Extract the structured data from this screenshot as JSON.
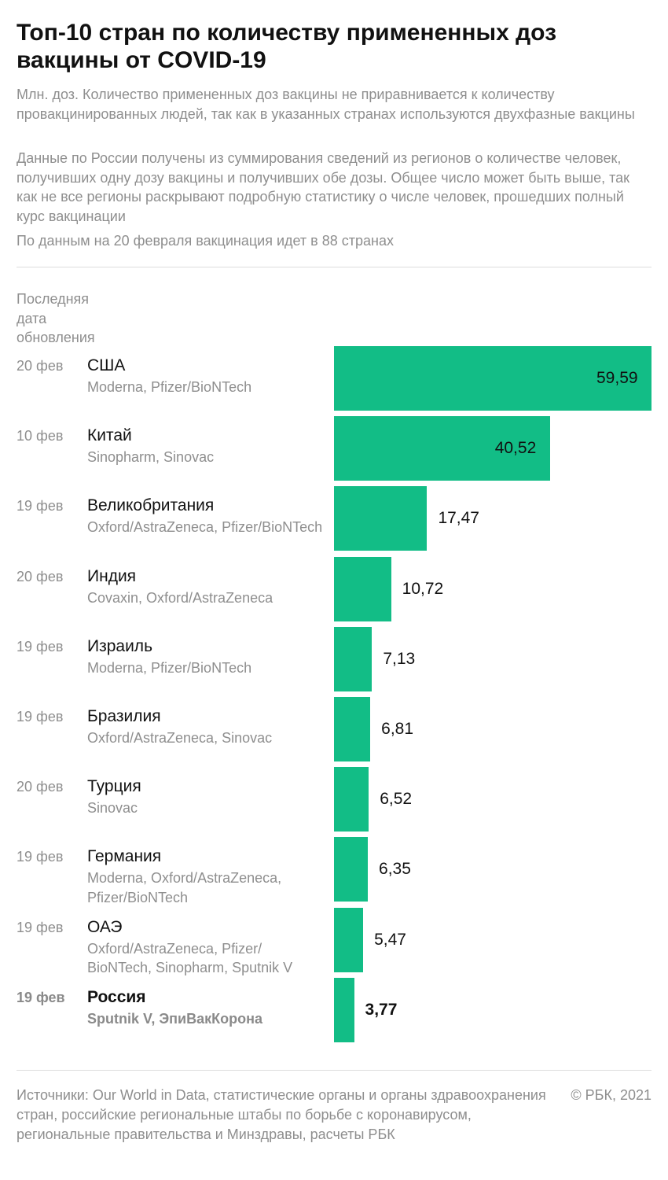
{
  "title": "Топ-10 стран по количеству примененных доз вакцины от COVID-19",
  "subtitle_1": "Млн. доз. Количество примененных доз вакцины не приравнивается к количеству провакцинированных людей, так как в указанных странах используются двухфазные вакцины",
  "subtitle_2": "Данные по России получены из суммирования сведений из регионов о количестве человек, получивших одну дозу вакцины и получивших обе дозы. Общее число может быть выше, так как не все регионы раскрывают подробную статистику о числе человек, прошедших полный курс вакцинации",
  "subtitle_3": "По данным на 20 февраля вакцинация идет в 88 странах",
  "column_header": "Последняя дата обновления",
  "footer": {
    "sources": "Источники: Our World in Data, статистические органы и органы здравоохранения стран, российские региональные штабы по борьбе с коронавирусом, региональные правительства и Минздравы, расчеты РБК",
    "copyright": "© РБК, 2021"
  },
  "colors": {
    "bar": "#12bd86",
    "muted_text": "#8e8e8e"
  },
  "chart_data": {
    "type": "bar",
    "orientation": "horizontal",
    "unit": "Млн. доз",
    "xlim": [
      0,
      59.59
    ],
    "grid": false,
    "legend": "none",
    "rows": [
      {
        "date": "20 фев",
        "country": "США",
        "vaccines": "Moderna, Pfizer/BioNTech",
        "value": 59.59,
        "label": "59,59"
      },
      {
        "date": "10 фев",
        "country": "Китай",
        "vaccines": "Sinopharm, Sinovac",
        "value": 40.52,
        "label": "40,52"
      },
      {
        "date": "19 фев",
        "country": "Великобритания",
        "vaccines": "Oxford/AstraZeneca, Pfizer/BioNTech",
        "value": 17.47,
        "label": "17,47"
      },
      {
        "date": "20 фев",
        "country": "Индия",
        "vaccines": "Covaxin, Oxford/AstraZeneca",
        "value": 10.72,
        "label": "10,72"
      },
      {
        "date": "19 фев",
        "country": "Израиль",
        "vaccines": "Moderna, Pfizer/BioNTech",
        "value": 7.13,
        "label": "7,13"
      },
      {
        "date": "19 фев",
        "country": "Бразилия",
        "vaccines": "Oxford/AstraZeneca, Sinovac",
        "value": 6.81,
        "label": "6,81"
      },
      {
        "date": "20 фев",
        "country": "Турция",
        "vaccines": "Sinovac",
        "value": 6.52,
        "label": "6,52"
      },
      {
        "date": "19 фев",
        "country": "Германия",
        "vaccines": "Moderna, Oxford/AstraZeneca, Pfizer/BioNTech",
        "value": 6.35,
        "label": "6,35"
      },
      {
        "date": "19 фев",
        "country": "ОАЭ",
        "vaccines": "Oxford/AstraZeneca, Pfizer/ BioNTech, Sinopharm, Sputnik V",
        "value": 5.47,
        "label": "5,47"
      },
      {
        "date": "19 фев",
        "country": "Россия",
        "vaccines": "Sputnik V, ЭпиВакКорона",
        "value": 3.77,
        "label": "3,77",
        "highlight": true
      }
    ]
  }
}
